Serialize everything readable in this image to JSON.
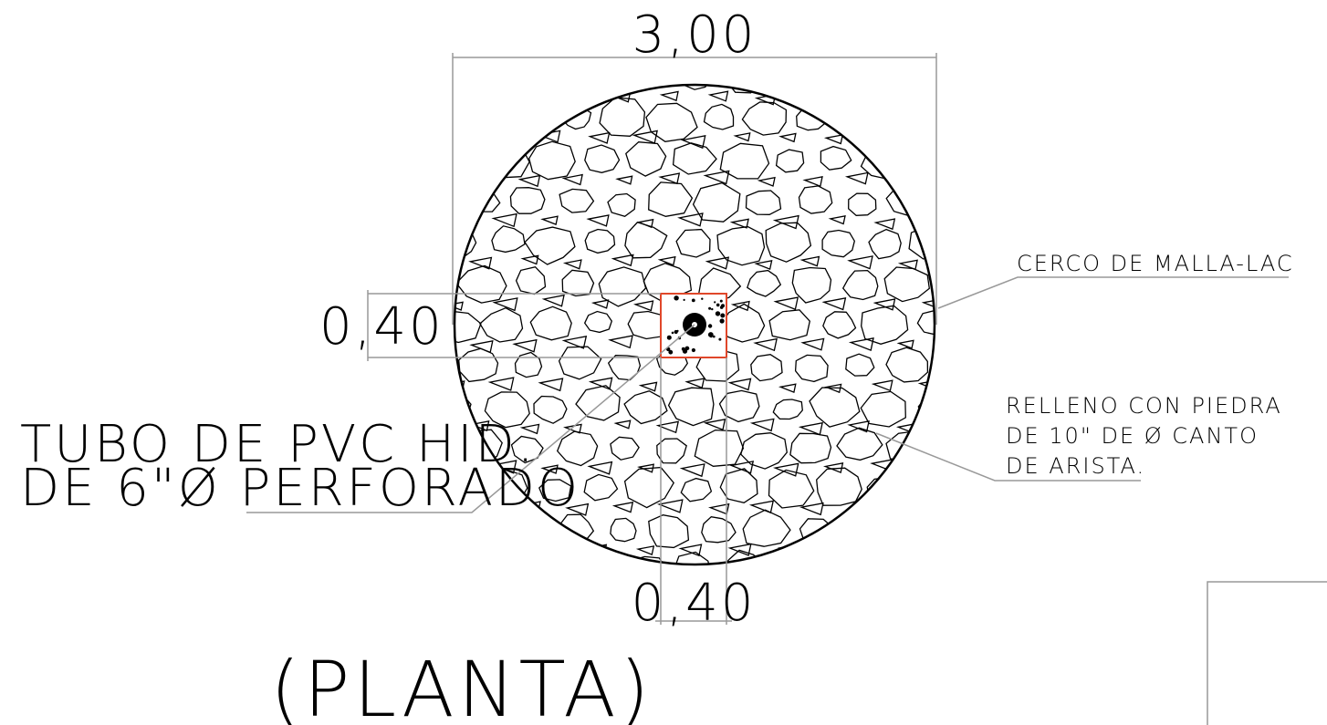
{
  "dimensions": {
    "overall_width": "3,00",
    "square_height": "0,40",
    "square_width": "0,40"
  },
  "labels": {
    "fence": "CERCO DE MALLA-LAC",
    "fill_line1": "RELLENO CON PIEDRA",
    "fill_line2": "DE 10\" DE Ø CANTO",
    "fill_line3": "DE ARISTA.",
    "pipe_line1": "TUBO DE PVC HID.",
    "pipe_line2": "DE 6\"Ø PERFORADO",
    "view_title": "(PLANTA)"
  },
  "colors": {
    "linework": "#000000",
    "dimension_lines": "#999999",
    "square_outline": "#e0472a"
  }
}
